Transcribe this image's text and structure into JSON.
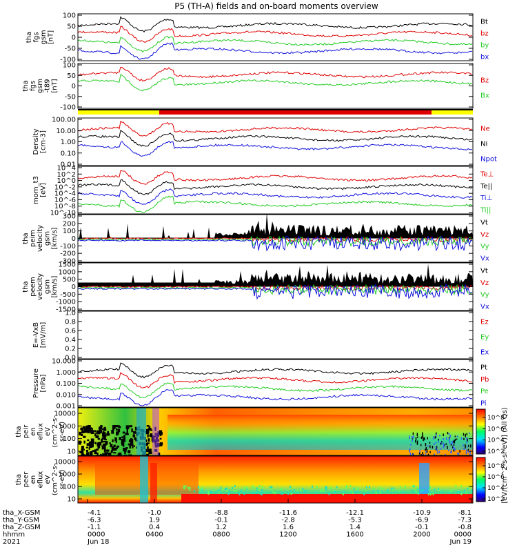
{
  "title": "P5 (TH-A) fields and on-board moments overview",
  "colors": {
    "black": "#000000",
    "red": "#e00000",
    "green": "#22cc22",
    "blue": "#1010dd",
    "yellow": "#ffff00"
  },
  "chart_data": [
    {
      "type": "line",
      "name": "fgs",
      "ylabel": [
        "tha",
        "fgs",
        "gsm",
        "[nT]"
      ],
      "yticks": [
        "100",
        "50",
        "0",
        "-50",
        "-100"
      ],
      "ylim": [
        -100,
        100
      ],
      "series": [
        {
          "name": "Bt",
          "color": "black"
        },
        {
          "name": "bz",
          "color": "red"
        },
        {
          "name": "by",
          "color": "green"
        },
        {
          "name": "bx",
          "color": "blue"
        }
      ]
    },
    {
      "type": "line",
      "name": "fgs-t89",
      "ylabel": [
        "tha",
        "fgs",
        "gsm",
        "-t89",
        "[nT]"
      ],
      "yticks": [
        "100",
        "50",
        "0",
        "-50",
        "-100"
      ],
      "ylim": [
        -120,
        120
      ],
      "series": [
        {
          "name": "Bz",
          "color": "red"
        },
        {
          "name": "Bx",
          "color": "green"
        }
      ]
    },
    {
      "type": "line",
      "name": "density",
      "ylabel": [
        "Density",
        "[cm-3]"
      ],
      "yticks": [
        "100.00",
        "10.00",
        "1.00",
        "0.10",
        "0.01"
      ],
      "scale": "log",
      "series": [
        {
          "name": "Ne",
          "color": "red"
        },
        {
          "name": "Ni",
          "color": "black"
        },
        {
          "name": "Npot",
          "color": "blue"
        }
      ]
    },
    {
      "type": "line",
      "name": "temperature",
      "ylabel": [
        "mom_t3",
        "[eV]"
      ],
      "yticks": [
        "10^4",
        "10^2",
        "10^0",
        "10^-2",
        "10^-4",
        "10^-6",
        "10^-8",
        "10^-10"
      ],
      "scale": "log",
      "series": [
        {
          "name": "Te⊥",
          "color": "red"
        },
        {
          "name": "Te||",
          "color": "black"
        },
        {
          "name": "Ti⊥",
          "color": "blue"
        },
        {
          "name": "Ti||",
          "color": "green"
        }
      ]
    },
    {
      "type": "line",
      "name": "peim-velocity",
      "ylabel": [
        "tha",
        "peim",
        "velocity",
        "gsm",
        "[km/s]"
      ],
      "yticks": [
        "300",
        "200",
        "100",
        "0",
        "-100",
        "-200",
        "-300"
      ],
      "ylim": [
        -300,
        300
      ],
      "series": [
        {
          "name": "Vt",
          "color": "black"
        },
        {
          "name": "Vz",
          "color": "red"
        },
        {
          "name": "Vy",
          "color": "green"
        },
        {
          "name": "Vx",
          "color": "blue"
        }
      ]
    },
    {
      "type": "line",
      "name": "peem-velocity",
      "ylabel": [
        "tha",
        "peem",
        "velocity",
        "gsm",
        "[km/s]"
      ],
      "yticks": [
        "1500",
        "1000",
        "500",
        "0",
        "-500",
        "-1000",
        "-1500"
      ],
      "ylim": [
        -1500,
        1500
      ],
      "series": [
        {
          "name": "Vt",
          "color": "black"
        },
        {
          "name": "Vz",
          "color": "red"
        },
        {
          "name": "Vy",
          "color": "green"
        },
        {
          "name": "Vx",
          "color": "blue"
        }
      ]
    },
    {
      "type": "line",
      "name": "efield",
      "ylabel": [
        "E=-VxB",
        "[mV/m]"
      ],
      "yticks": [
        "1.0",
        "0.8",
        "0.6",
        "0.4",
        "0.2",
        "0.0"
      ],
      "ylim": [
        0,
        1
      ],
      "series": [
        {
          "name": "Ez",
          "color": "red"
        },
        {
          "name": "Ey",
          "color": "green"
        },
        {
          "name": "Ex",
          "color": "blue"
        }
      ]
    },
    {
      "type": "line",
      "name": "pressure",
      "ylabel": [
        "Pressure",
        "[nPa]"
      ],
      "yticks": [
        "10.000",
        "1.000",
        "0.100",
        "0.010",
        "0.001"
      ],
      "scale": "log",
      "series": [
        {
          "name": "Pt",
          "color": "black"
        },
        {
          "name": "Pb",
          "color": "red"
        },
        {
          "name": "Pe",
          "color": "green"
        },
        {
          "name": "Pi",
          "color": "blue"
        }
      ]
    },
    {
      "type": "heatmap",
      "name": "peir-eflux",
      "ylabel": [
        "tha",
        "peir",
        "en",
        "eflux",
        "eV",
        "(cm^2-s-",
        "sr-eV)"
      ],
      "yticks": [
        "10000",
        "1000",
        "100",
        "10"
      ],
      "scale": "log",
      "colorbar_ticks": [
        "10^8",
        "10^6",
        "10^4",
        "10^2"
      ],
      "colorbar_label": "[eV/(cm^2-s-sr-eV)] (All Qs)"
    },
    {
      "type": "heatmap",
      "name": "peer-eflux",
      "ylabel": [
        "tha",
        "peer",
        "en",
        "eflux",
        "eV",
        "(cm^2-s-",
        "sr-eV)"
      ],
      "yticks": [
        "10000",
        "1000",
        "100",
        "10"
      ],
      "scale": "log",
      "colorbar_ticks": [
        "10^8",
        "10^6",
        "10^4",
        "10^2"
      ]
    }
  ],
  "xaxis": {
    "rows": [
      {
        "label": "tha_X-GSM",
        "values": [
          "-4.1",
          "-1.0",
          "-8.8",
          "-11.6",
          "-12.1",
          "-10.9",
          "-8.1"
        ]
      },
      {
        "label": "tha_Y-GSM",
        "values": [
          "-6.3",
          "1.9",
          "-0.1",
          "-2.8",
          "-5.3",
          "-6.9",
          "-7.3"
        ]
      },
      {
        "label": "tha_Z-GSM",
        "values": [
          "-1.1",
          "0.4",
          "1.2",
          "1.6",
          "1.4",
          "-0.1",
          "-0.8"
        ]
      },
      {
        "label": "hhmm",
        "values": [
          "0000",
          "0400",
          "0800",
          "1200",
          "1600",
          "2000",
          "0000"
        ]
      }
    ],
    "year": "2021",
    "date_start": "Jun 18",
    "date_end": "Jun 19"
  }
}
